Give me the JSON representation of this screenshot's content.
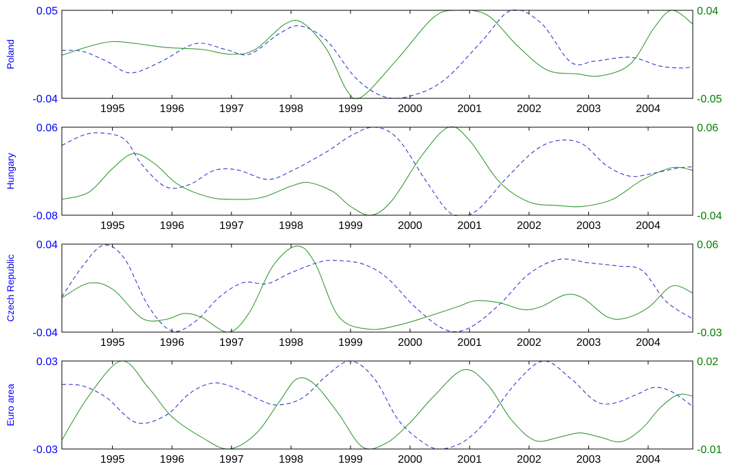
{
  "colors": {
    "left_axis": "#0000ff",
    "right_axis": "#007f00",
    "dashed_series": "#3333cc",
    "solid_series": "#339933"
  },
  "chart_data": [
    {
      "type": "line",
      "ylabel": "Poland",
      "xlim": [
        1994.15,
        2004.75
      ],
      "x_ticks": [
        1995,
        1996,
        1997,
        1998,
        1999,
        2000,
        2001,
        2002,
        2003,
        2004
      ],
      "left_axis": {
        "ylim": [
          -0.04,
          0.05
        ],
        "tick_labels": [
          "0.05",
          "-0.04"
        ]
      },
      "right_axis": {
        "ylim": [
          -0.05,
          0.04
        ],
        "tick_labels": [
          "0.04",
          "-0.05"
        ]
      },
      "series": [
        {
          "axis": "left",
          "style": "dashed",
          "x": [
            1994.15,
            1994.5,
            1994.9,
            1995.3,
            1995.8,
            1996.4,
            1996.9,
            1997.3,
            1997.8,
            1998.15,
            1998.6,
            1999.1,
            1999.6,
            2000.1,
            2000.6,
            2001.2,
            2001.7,
            2002.2,
            2002.7,
            2003.1,
            2003.7,
            2004.2,
            2004.6,
            2004.75
          ],
          "y": [
            0.009,
            0.008,
            -0.002,
            -0.014,
            -0.003,
            0.016,
            0.01,
            0.005,
            0.026,
            0.034,
            0.019,
            -0.02,
            -0.039,
            -0.036,
            -0.02,
            0.018,
            0.05,
            0.037,
            -0.003,
            -0.002,
            0.002,
            -0.007,
            -0.009,
            -0.007
          ]
        },
        {
          "axis": "right",
          "style": "solid",
          "x": [
            1994.15,
            1994.6,
            1995.0,
            1995.4,
            1995.9,
            1996.5,
            1997.0,
            1997.4,
            1997.9,
            1998.2,
            1998.6,
            1998.95,
            1999.2,
            1999.8,
            2000.4,
            2000.8,
            2001.3,
            2001.8,
            2002.3,
            2002.8,
            2003.2,
            2003.7,
            2004.1,
            2004.4,
            2004.75
          ],
          "y": [
            -0.006,
            0.003,
            0.008,
            0.006,
            0.002,
            0.0,
            -0.005,
            0.0,
            0.026,
            0.027,
            0.0,
            -0.043,
            -0.048,
            -0.009,
            0.033,
            0.04,
            0.035,
            0.004,
            -0.021,
            -0.025,
            -0.027,
            -0.015,
            0.022,
            0.04,
            0.026
          ]
        }
      ]
    },
    {
      "type": "line",
      "ylabel": "Hungary",
      "xlim": [
        1994.15,
        2004.75
      ],
      "x_ticks": [
        1995,
        1996,
        1997,
        1998,
        1999,
        2000,
        2001,
        2002,
        2003,
        2004
      ],
      "left_axis": {
        "ylim": [
          -0.08,
          0.06
        ],
        "tick_labels": [
          "0.06",
          "-0.08"
        ]
      },
      "right_axis": {
        "ylim": [
          -0.04,
          0.06
        ],
        "tick_labels": [
          "0.06",
          "-0.04"
        ]
      },
      "series": [
        {
          "axis": "left",
          "style": "dashed",
          "x": [
            1994.15,
            1994.5,
            1994.8,
            1995.2,
            1995.5,
            1995.9,
            1996.3,
            1996.7,
            1997.1,
            1997.6,
            1998.0,
            1998.6,
            1999.0,
            1999.4,
            1999.8,
            2000.3,
            2000.7,
            2001.1,
            2001.6,
            2002.1,
            2002.5,
            2002.9,
            2003.3,
            2003.7,
            2004.1,
            2004.5,
            2004.75
          ],
          "y": [
            0.031,
            0.047,
            0.051,
            0.041,
            0.0,
            -0.035,
            -0.031,
            -0.009,
            -0.008,
            -0.023,
            -0.01,
            0.021,
            0.046,
            0.06,
            0.041,
            -0.03,
            -0.078,
            -0.074,
            -0.023,
            0.023,
            0.039,
            0.033,
            -0.001,
            -0.018,
            -0.013,
            -0.005,
            -0.003
          ]
        },
        {
          "axis": "right",
          "style": "solid",
          "x": [
            1994.15,
            1994.6,
            1995.0,
            1995.35,
            1995.7,
            1996.1,
            1996.6,
            1997.0,
            1997.5,
            1998.0,
            1998.3,
            1998.7,
            1999.0,
            1999.35,
            1999.7,
            2000.2,
            2000.65,
            2001.0,
            2001.5,
            2002.0,
            2002.5,
            2002.9,
            2003.4,
            2003.9,
            2004.4,
            2004.75
          ],
          "y": [
            -0.022,
            -0.014,
            0.013,
            0.03,
            0.019,
            -0.005,
            -0.019,
            -0.022,
            -0.02,
            -0.007,
            -0.003,
            -0.013,
            -0.03,
            -0.04,
            -0.023,
            0.028,
            0.06,
            0.045,
            -0.002,
            -0.025,
            -0.029,
            -0.03,
            -0.022,
            0.0,
            0.014,
            0.011
          ]
        }
      ]
    },
    {
      "type": "line",
      "ylabel": "Czech Republic",
      "xlim": [
        1994.15,
        2004.75
      ],
      "x_ticks": [
        1995,
        1996,
        1997,
        1998,
        1999,
        2000,
        2001,
        2002,
        2003,
        2004
      ],
      "left_axis": {
        "ylim": [
          -0.04,
          0.04
        ],
        "tick_labels": [
          "0.04",
          "-0.04"
        ]
      },
      "right_axis": {
        "ylim": [
          -0.03,
          0.06
        ],
        "tick_labels": [
          "0.06",
          "-0.03"
        ]
      },
      "series": [
        {
          "axis": "left",
          "style": "dashed",
          "x": [
            1994.15,
            1994.5,
            1994.85,
            1995.2,
            1995.6,
            1996.0,
            1996.4,
            1996.8,
            1997.2,
            1997.6,
            1998.0,
            1998.5,
            1998.8,
            1999.2,
            1999.6,
            2000.1,
            2000.6,
            2001.0,
            2001.5,
            2002.0,
            2002.5,
            2003.0,
            2003.5,
            2003.9,
            2004.3,
            2004.75
          ],
          "y": [
            -0.008,
            0.02,
            0.039,
            0.027,
            -0.016,
            -0.039,
            -0.03,
            -0.008,
            0.005,
            0.004,
            0.014,
            0.024,
            0.025,
            0.022,
            0.01,
            -0.018,
            -0.038,
            -0.036,
            -0.015,
            0.013,
            0.026,
            0.023,
            0.02,
            0.016,
            -0.012,
            -0.028
          ]
        },
        {
          "axis": "right",
          "style": "solid",
          "x": [
            1994.15,
            1994.6,
            1995.0,
            1995.5,
            1995.9,
            1996.2,
            1996.5,
            1996.95,
            1997.3,
            1997.7,
            1998.1,
            1998.4,
            1998.8,
            1999.3,
            1999.8,
            2000.3,
            2000.8,
            2001.1,
            2001.5,
            2001.9,
            2002.2,
            2002.6,
            2002.9,
            2003.3,
            2003.6,
            2004.0,
            2004.4,
            2004.75
          ],
          "y": [
            0.005,
            0.02,
            0.014,
            -0.016,
            -0.017,
            -0.011,
            -0.015,
            -0.03,
            -0.01,
            0.038,
            0.058,
            0.041,
            -0.014,
            -0.027,
            -0.023,
            -0.014,
            -0.004,
            0.002,
            0.0,
            -0.007,
            -0.004,
            0.008,
            0.005,
            -0.014,
            -0.016,
            -0.005,
            0.017,
            0.01
          ]
        }
      ]
    },
    {
      "type": "line",
      "ylabel": "Euro area",
      "xlim": [
        1994.15,
        2004.75
      ],
      "x_ticks": [
        1995,
        1996,
        1997,
        1998,
        1999,
        2000,
        2001,
        2002,
        2003,
        2004
      ],
      "left_axis": {
        "ylim": [
          -0.03,
          0.03
        ],
        "tick_labels": [
          "0.03",
          "-0.03"
        ]
      },
      "right_axis": {
        "ylim": [
          -0.01,
          0.02
        ],
        "tick_labels": [
          "0.02",
          "-0.01"
        ]
      },
      "series": [
        {
          "axis": "left",
          "style": "dashed",
          "x": [
            1994.15,
            1994.5,
            1994.9,
            1995.4,
            1995.9,
            1996.3,
            1996.7,
            1997.1,
            1997.5,
            1997.8,
            1998.2,
            1998.6,
            1999.0,
            1999.4,
            1999.8,
            2000.2,
            2000.5,
            2000.9,
            2001.3,
            2001.8,
            2002.25,
            2002.7,
            2003.1,
            2003.4,
            2003.8,
            2004.1,
            2004.4,
            2004.75
          ],
          "y": [
            0.014,
            0.013,
            0.005,
            -0.012,
            -0.007,
            0.008,
            0.015,
            0.011,
            0.003,
            0.0,
            0.005,
            0.02,
            0.03,
            0.018,
            -0.01,
            -0.025,
            -0.03,
            -0.025,
            -0.01,
            0.016,
            0.03,
            0.018,
            0.003,
            0.001,
            0.007,
            0.012,
            0.009,
            -0.001
          ]
        },
        {
          "axis": "right",
          "style": "solid",
          "x": [
            1994.15,
            1994.6,
            1995.15,
            1995.6,
            1996.0,
            1996.5,
            1996.95,
            1997.4,
            1997.8,
            1998.1,
            1998.4,
            1998.8,
            1999.2,
            1999.6,
            2000.0,
            2000.4,
            2000.9,
            2001.3,
            2001.7,
            2002.1,
            2002.5,
            2002.85,
            2003.2,
            2003.55,
            2003.9,
            2004.2,
            2004.5,
            2004.75
          ],
          "y": [
            -0.007,
            0.008,
            0.02,
            0.011,
            0.001,
            -0.006,
            -0.01,
            -0.005,
            0.006,
            0.0139,
            0.012,
            0.002,
            -0.0093,
            -0.008,
            -0.001,
            0.008,
            0.017,
            0.012,
            0.0,
            -0.0071,
            -0.006,
            -0.0045,
            -0.006,
            -0.0075,
            -0.003,
            0.004,
            0.0085,
            0.008
          ]
        }
      ]
    }
  ]
}
